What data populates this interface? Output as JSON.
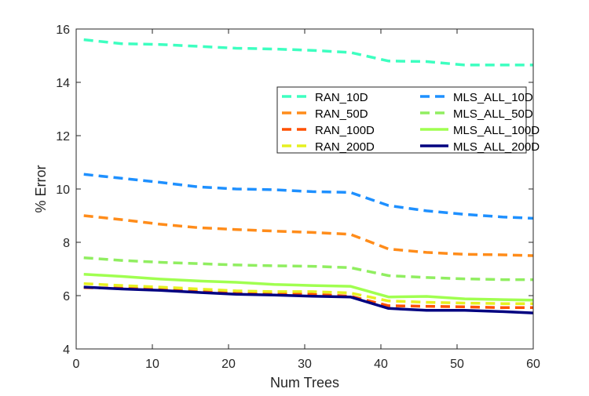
{
  "chart_data": {
    "type": "line",
    "xlabel": "Num Trees",
    "ylabel": "% Error",
    "xlim": [
      0,
      60
    ],
    "ylim": [
      4,
      16
    ],
    "xticks": [
      0,
      10,
      20,
      30,
      40,
      50,
      60
    ],
    "yticks": [
      4,
      6,
      8,
      10,
      12,
      14,
      16
    ],
    "grid": false,
    "legend_placement": "top-right",
    "x": [
      1,
      6,
      11,
      16,
      21,
      26,
      31,
      36,
      41,
      46,
      51,
      56,
      60
    ],
    "series": [
      {
        "name": "RAN_10D",
        "color": "#3dffc0",
        "dash": "dashed",
        "values": [
          15.6,
          15.45,
          15.42,
          15.35,
          15.28,
          15.25,
          15.2,
          15.12,
          14.8,
          14.78,
          14.65,
          14.65,
          14.65
        ]
      },
      {
        "name": "RAN_50D",
        "color": "#ff8c1a",
        "dash": "dashed",
        "values": [
          9.0,
          8.85,
          8.68,
          8.55,
          8.48,
          8.42,
          8.37,
          8.3,
          7.75,
          7.62,
          7.55,
          7.53,
          7.5
        ]
      },
      {
        "name": "RAN_100D",
        "color": "#ff5000",
        "dash": "dashed",
        "values": [
          6.3,
          6.28,
          6.25,
          6.18,
          6.1,
          6.08,
          6.05,
          5.98,
          5.62,
          5.6,
          5.58,
          5.55,
          5.55
        ]
      },
      {
        "name": "RAN_200D",
        "color": "#e6f020",
        "dash": "dashed",
        "values": [
          6.45,
          6.38,
          6.32,
          6.25,
          6.18,
          6.15,
          6.15,
          6.1,
          5.8,
          5.75,
          5.72,
          5.7,
          5.7
        ]
      },
      {
        "name": "MLS_ALL_10D",
        "color": "#1e90ff",
        "dash": "dashed",
        "values": [
          10.55,
          10.4,
          10.25,
          10.08,
          10.0,
          9.97,
          9.9,
          9.87,
          9.38,
          9.18,
          9.05,
          8.95,
          8.9
        ]
      },
      {
        "name": "MLS_ALL_50D",
        "color": "#90ee60",
        "dash": "dashed",
        "values": [
          7.42,
          7.32,
          7.25,
          7.2,
          7.15,
          7.12,
          7.1,
          7.05,
          6.75,
          6.68,
          6.63,
          6.6,
          6.6
        ]
      },
      {
        "name": "MLS_ALL_100D",
        "color": "#a0ff50",
        "dash": "solid",
        "values": [
          6.8,
          6.72,
          6.62,
          6.55,
          6.5,
          6.42,
          6.38,
          6.35,
          5.95,
          5.97,
          5.88,
          5.85,
          5.83
        ]
      },
      {
        "name": "MLS_ALL_200D",
        "color": "#000080",
        "dash": "solid",
        "values": [
          6.32,
          6.25,
          6.2,
          6.12,
          6.05,
          6.02,
          5.98,
          5.95,
          5.52,
          5.45,
          5.45,
          5.4,
          5.35
        ]
      }
    ]
  }
}
